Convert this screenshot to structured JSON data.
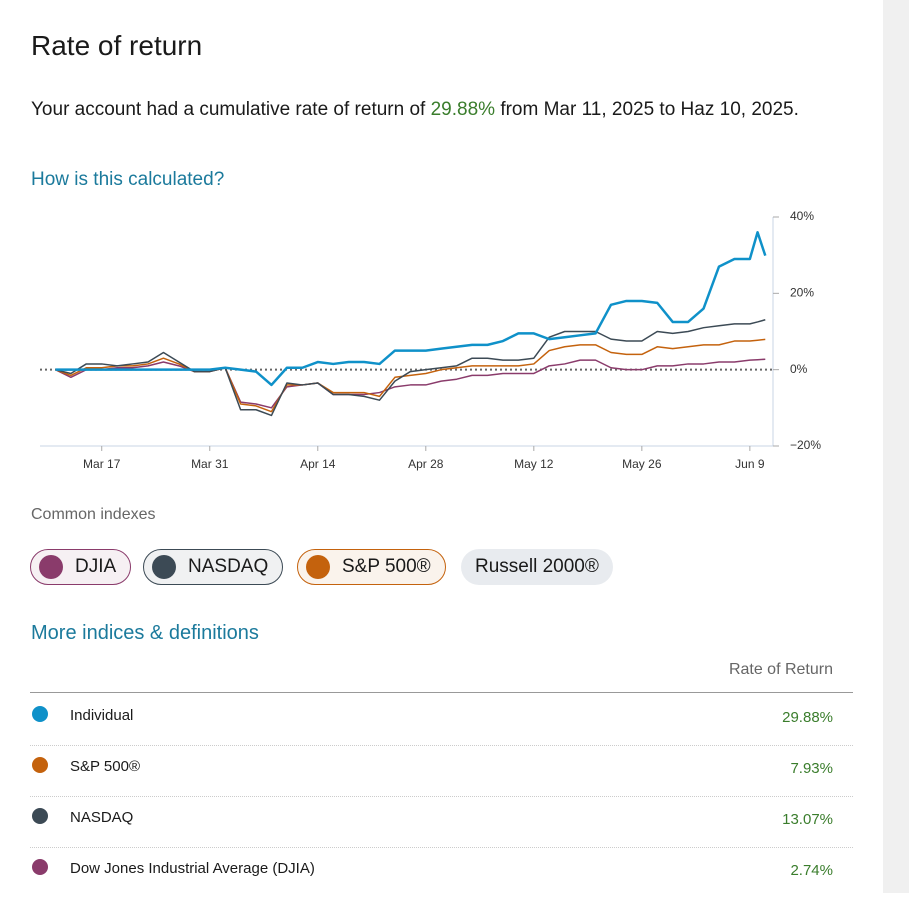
{
  "header": {
    "title": "Rate of return"
  },
  "summary": {
    "prefix": "Your account had a cumulative rate of return of ",
    "value": "29.88%",
    "suffix": " from Mar 11, 2025 to Haz 10, 2025."
  },
  "help_link": "How is this calculated?",
  "chart_data": {
    "type": "line",
    "x": [
      0,
      2,
      4,
      6,
      8,
      10,
      12,
      14,
      16,
      18,
      20,
      22,
      24,
      26,
      28,
      30,
      32,
      34,
      36,
      38,
      40,
      42,
      44,
      46,
      48,
      50,
      52,
      54,
      56,
      58,
      60,
      62,
      64,
      66,
      68,
      70,
      72,
      74,
      76,
      78,
      80,
      82,
      84,
      86,
      88,
      90,
      91,
      92
    ],
    "xlim": [
      -2,
      93
    ],
    "xticks": [
      {
        "value": 6,
        "label": "Mar 17"
      },
      {
        "value": 20,
        "label": "Mar 31"
      },
      {
        "value": 34,
        "label": "Apr 14"
      },
      {
        "value": 48,
        "label": "Apr 28"
      },
      {
        "value": 62,
        "label": "May 12"
      },
      {
        "value": 76,
        "label": "May 26"
      },
      {
        "value": 90,
        "label": "Jun 9"
      }
    ],
    "ylim": [
      -20,
      40
    ],
    "yticks": [
      {
        "value": 40,
        "label": "40%"
      },
      {
        "value": 20,
        "label": "20%"
      },
      {
        "value": 0,
        "label": "0%"
      },
      {
        "value": -20,
        "label": "−20%"
      }
    ],
    "series": [
      {
        "name": "DJIA",
        "color": "#8a3b6b",
        "values": [
          0,
          -2,
          0,
          0,
          0.5,
          0.5,
          1,
          2,
          1,
          -0.5,
          -0.5,
          0.5,
          -8.5,
          -9,
          -10,
          -4.5,
          -4,
          -3.5,
          -6.5,
          -6.5,
          -6.5,
          -6,
          -4.5,
          -4,
          -4,
          -3,
          -2.5,
          -1.5,
          -1.5,
          -1,
          -1,
          -1,
          1,
          1.5,
          2.5,
          2.5,
          0.5,
          0,
          0,
          1,
          1,
          1.5,
          1.5,
          2,
          2,
          2.5,
          2.6,
          2.74
        ]
      },
      {
        "name": "S&P 500®",
        "color": "#c4620d",
        "values": [
          0,
          -1.5,
          0.5,
          0.5,
          1,
          1,
          1.5,
          3,
          1.5,
          -0.5,
          -0.5,
          0.5,
          -9,
          -9.5,
          -11,
          -4,
          -4,
          -3.5,
          -6,
          -6,
          -6,
          -7,
          -2,
          -1.5,
          -1,
          0,
          0.5,
          1,
          1,
          1,
          1,
          1.5,
          5,
          6,
          6.5,
          6.5,
          4.5,
          4,
          4,
          6,
          5.5,
          6,
          6.5,
          6.5,
          7.5,
          7.5,
          7.7,
          7.93
        ]
      },
      {
        "name": "NASDAQ",
        "color": "#3c4a55",
        "values": [
          0,
          -1,
          1.5,
          1.5,
          1,
          1.5,
          2,
          4.5,
          2,
          -0.5,
          -0.5,
          0.5,
          -10.5,
          -10.5,
          -12,
          -3.5,
          -4,
          -3.5,
          -6.5,
          -6.5,
          -7,
          -8,
          -3,
          -0.5,
          0,
          0.5,
          1,
          3,
          3,
          2.5,
          2.5,
          3,
          8.5,
          10,
          10,
          10,
          8,
          7.5,
          7.5,
          10,
          9.5,
          10,
          11,
          11.5,
          12,
          12,
          12.5,
          13.07
        ]
      },
      {
        "name": "Individual",
        "color": "#0f91c9",
        "values": [
          0,
          0,
          0,
          0,
          0,
          0,
          0,
          0,
          0,
          0,
          0,
          0.5,
          0,
          -0.5,
          -4,
          0.5,
          0.5,
          2,
          1.5,
          2,
          2,
          1.5,
          5,
          5,
          5,
          5.5,
          6,
          6.5,
          6.5,
          7.5,
          9.5,
          9.5,
          8,
          8.5,
          9,
          9.5,
          17,
          18,
          18,
          17.5,
          12.5,
          12.5,
          16,
          27,
          29,
          29,
          36,
          29.88
        ]
      }
    ]
  },
  "indexes": {
    "label": "Common indexes",
    "chips": [
      "DJIA",
      "NASDAQ",
      "S&P 500®",
      "Russell 2000®"
    ]
  },
  "more_link": "More indices & definitions",
  "table": {
    "header": "Rate of Return",
    "rows": [
      [
        "Individual",
        "29.88%"
      ],
      [
        "S&P 500®",
        "7.93%"
      ],
      [
        "NASDAQ",
        "13.07%"
      ],
      [
        "Dow Jones Industrial Average (DJIA)",
        "2.74%"
      ]
    ]
  }
}
